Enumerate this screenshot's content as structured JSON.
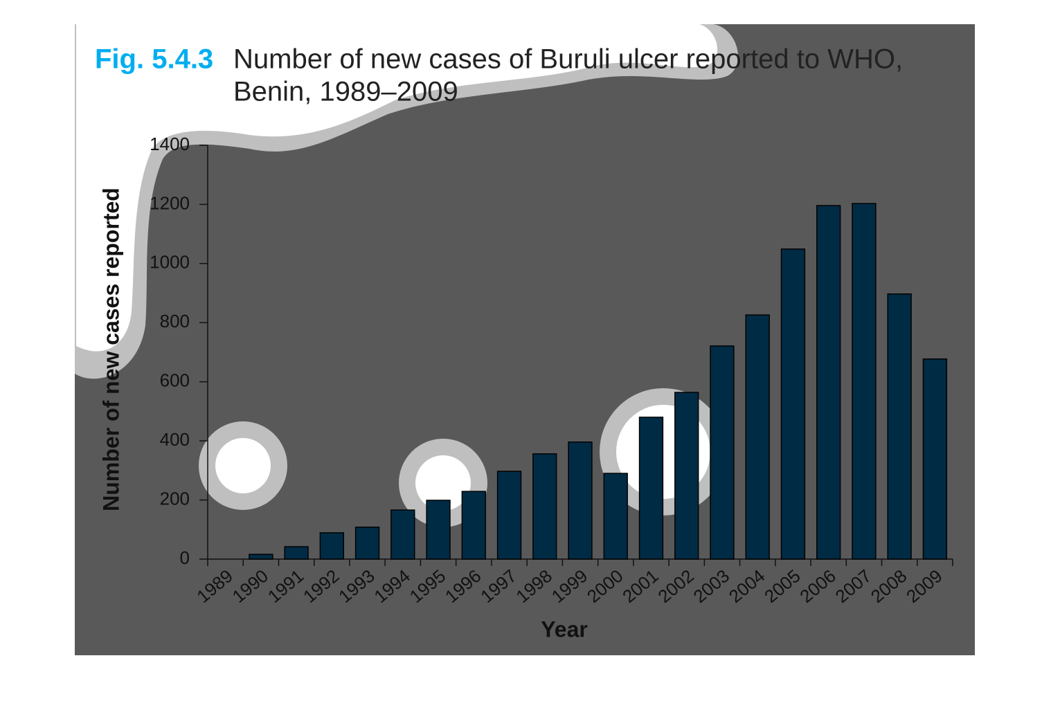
{
  "chart_data": {
    "type": "bar",
    "figure_label": "Fig. 5.4.3",
    "title": "Number of new cases of Buruli ulcer reported to WHO,",
    "subtitle": "Benin, 1989–2009",
    "x_label": "Year",
    "y_label": "Number of new cases reported",
    "categories": [
      "1989",
      "1990",
      "1991",
      "1992",
      "1993",
      "1994",
      "1995",
      "1996",
      "1997",
      "1998",
      "1999",
      "2000",
      "2001",
      "2002",
      "2003",
      "2004",
      "2005",
      "2006",
      "2007",
      "2008",
      "2009"
    ],
    "values": [
      0,
      16,
      42,
      89,
      108,
      166,
      199,
      229,
      297,
      356,
      396,
      290,
      480,
      564,
      721,
      826,
      1049,
      1196,
      1203,
      897,
      677
    ],
    "color": "#002b45",
    "ylim": [
      0,
      1400
    ],
    "yticks": [
      0,
      200,
      400,
      600,
      800,
      1000,
      1200,
      1400
    ],
    "grid": false
  }
}
